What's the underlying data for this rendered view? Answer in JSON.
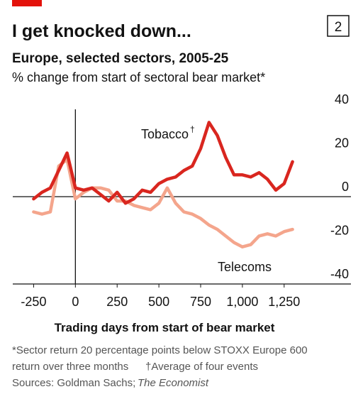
{
  "chart_number": "2",
  "chart_data": {
    "type": "line",
    "title": "I get knocked down...",
    "subtitle": "Europe, selected sectors, 2005-25",
    "y_axis_label": "% change from start of sectoral bear market*",
    "x_axis_label": "Trading days from start of bear market",
    "tobacco_note_mark": "†",
    "footnote_lines": [
      "*Sector return 20 percentage points below STOXX Europe 600",
      "return over three months"
    ],
    "footnote_2": "†Average of four events",
    "source": "Sources: Goldman Sachs;",
    "source_publication": "The Economist",
    "x": [
      -250,
      -200,
      -150,
      -100,
      -50,
      0,
      50,
      100,
      150,
      200,
      250,
      300,
      350,
      400,
      450,
      500,
      550,
      600,
      650,
      700,
      750,
      800,
      850,
      900,
      950,
      1000,
      1050,
      1100,
      1150,
      1200,
      1250,
      1300
    ],
    "series": [
      {
        "name": "Telecoms",
        "color": "#f4a58c",
        "values": [
          -7,
          -8,
          -7,
          14,
          17,
          -1,
          2,
          4,
          4,
          3,
          -2,
          -2,
          -4,
          -5,
          -6,
          -3,
          4,
          -3,
          -7,
          -8,
          -10,
          -13,
          -15,
          -18,
          -21,
          -23,
          -22,
          -18,
          -17,
          -18,
          -16,
          -15
        ]
      },
      {
        "name": "Tobacco",
        "color": "#d9261f",
        "values": [
          -1,
          2,
          4,
          12,
          20,
          4,
          3,
          4,
          1,
          -2,
          2,
          -3,
          -1,
          3,
          2,
          6,
          8,
          9,
          12,
          14,
          22,
          34,
          28,
          18,
          10,
          10,
          9,
          11,
          8,
          3,
          6,
          16
        ]
      }
    ],
    "xlim": [
      -375,
      1650
    ],
    "xticks": [
      -250,
      0,
      250,
      500,
      750,
      {
        "value": 1000,
        "label": "1,000"
      },
      {
        "value": 1250,
        "label": "1,250"
      }
    ],
    "ylim": [
      -40,
      40
    ],
    "yticks": [
      40,
      20,
      0,
      -20,
      -40
    ],
    "grid": false
  }
}
